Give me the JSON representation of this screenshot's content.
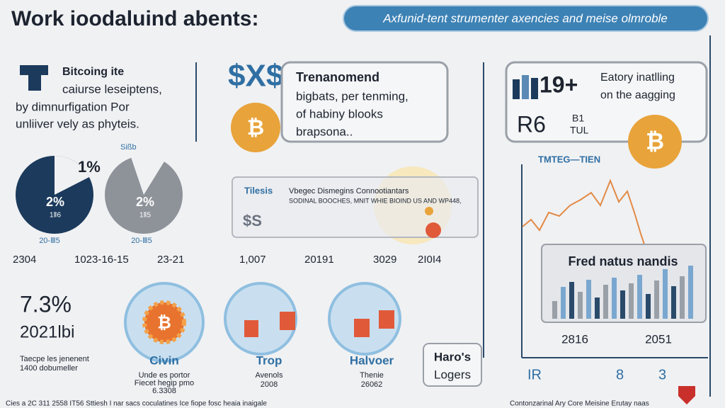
{
  "header": {
    "title": "Work ioodaluind abents:",
    "banner": "Axfunid-tent strumenter axencies and meise olmroble"
  },
  "intro": {
    "lines": [
      "Bitcoing ite",
      "caiurse leseiptens,",
      "by dimnurfigation Por",
      "unliiver vely as phyteis."
    ]
  },
  "pies": [
    {
      "top_label": "1%",
      "center_label": "2%",
      "sub_label": "1Ⅱ6",
      "caption": "20-Ⅲ5"
    },
    {
      "top_label": "Sißb",
      "center_label": "2%",
      "sub_label": "1Ⅱ5",
      "caption": "20-Ⅲ5"
    }
  ],
  "dates": [
    "2304",
    "1023-16-15",
    "23-21",
    "1,007",
    "20191",
    "3029",
    "2I0I4"
  ],
  "trend": {
    "title": "Trenanomend",
    "lines": [
      "bigbats, per tenming,",
      "of habiny blooks",
      "brapsona.."
    ]
  },
  "notice": {
    "tag": "Tilesis",
    "icon": "$S",
    "line1": "Vbegec Dismegins Connootiantars",
    "line2": "SODINAL BOOCHES, MNIT WHIE BIOIND US AND WP448,"
  },
  "stats": {
    "count": "19+",
    "lines": [
      "Eatory inatlling",
      "on the aagging"
    ],
    "code": "R6",
    "code_top": "B1",
    "code_bottom": "TUL"
  },
  "line_chart": {
    "title": "TMTEG—TIEN"
  },
  "bar_box": {
    "title": "Fred natus nandis",
    "labels": [
      "2816",
      "2051"
    ]
  },
  "axis_labels": [
    "IR",
    "8",
    "3"
  ],
  "highlight": {
    "percent": "7.3%",
    "year": "2021lbi",
    "lines": [
      "Taecpe les jenenent",
      "1400 dobumeller"
    ]
  },
  "circles": [
    {
      "title": "Civin",
      "lines": [
        "Unde es portor",
        "Fiecet hegip pmo",
        "6.3308"
      ]
    },
    {
      "title": "Trop",
      "lines": [
        "Avenols",
        "2008"
      ]
    },
    {
      "title": "Halvoer",
      "lines": [
        "Thenie",
        "26062"
      ]
    }
  ],
  "logo_box": {
    "lines": [
      "Haro's",
      "Logers"
    ]
  },
  "footer": {
    "left": "Cies a 2C 311 2558 IT56 Sttiesh I nar sacs coculatines Ice fiope fosc heaia inaigale",
    "right": "Contonzarinal Ary Core Meisine Erutay naas"
  }
}
